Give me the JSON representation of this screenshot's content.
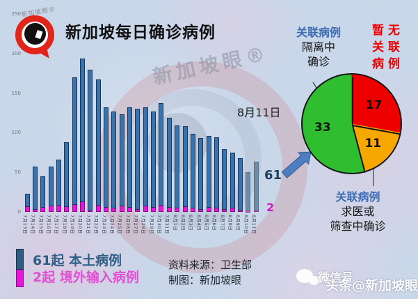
{
  "brand": {
    "logo_text": "新加坡眼®",
    "title": "新加坡每日确诊病例"
  },
  "chart_data": {
    "type": "bar",
    "stacked": true,
    "title": "新加坡每日确诊病例",
    "categories": [
      "7月13日",
      "7月14日",
      "7月15日",
      "7月16日",
      "7月17日",
      "7月18日",
      "7月19日",
      "7月20日",
      "7月21日",
      "7月22日",
      "7月23日",
      "7月24日",
      "7月25日",
      "7月26日",
      "7月27日",
      "7月28日",
      "7月29日",
      "7月30日",
      "7月31日",
      "8月1日",
      "8月2日",
      "8月3日",
      "8月4日",
      "8月5日",
      "8月6日",
      "8月7日",
      "8月8日",
      "8月9日",
      "8月10日",
      "8月11日"
    ],
    "series": [
      {
        "name": "本土病例",
        "color": "#3a73ac",
        "values": [
          17,
          54,
          40,
          50,
          58,
          82,
          161,
          182,
          178,
          159,
          127,
          123,
          116,
          127,
          127,
          125,
          122,
          129,
          114,
          105,
          102,
          95,
          90,
          91,
          90,
          76,
          71,
          66,
          49,
          61
        ]
      },
      {
        "name": "境外输入病例",
        "color": "#e816d8",
        "values": [
          6,
          3,
          5,
          7,
          8,
          6,
          9,
          12,
          2,
          8,
          5,
          4,
          7,
          5,
          3,
          7,
          5,
          8,
          5,
          4,
          6,
          4,
          3,
          5,
          4,
          3,
          4,
          2,
          1,
          2
        ]
      }
    ],
    "muted_last_n": 2,
    "ylim": [
      0,
      250
    ],
    "yticks": [
      0,
      50,
      100,
      150,
      200,
      250
    ],
    "grid": false,
    "legend_position": "bottom-left"
  },
  "annotations": {
    "date_label": "8月11日",
    "local_count": "61",
    "imported_count": "2"
  },
  "pie": {
    "type": "pie",
    "total": 61,
    "slices": [
      {
        "label": "暂无关联病例",
        "value": 17,
        "color": "#ee0000"
      },
      {
        "label": "关联病例 求医或筛查中确诊",
        "value": 11,
        "color": "#f6a800"
      },
      {
        "label": "关联病例 隔离中确诊",
        "value": 33,
        "color": "#2fbe2f"
      }
    ],
    "label_quarantine": {
      "head": "关联病例",
      "line2": "隔离中",
      "line3": "确诊"
    },
    "label_unlinked": {
      "line1": "暂无",
      "line2": "关联",
      "line3": "病例"
    },
    "label_screening": {
      "head": "关联病例",
      "line2": "求医或",
      "line3": "筛查中确诊"
    }
  },
  "legend": {
    "local": "61起 本土病例",
    "imported": "2起  境外输入病例"
  },
  "source": {
    "line1": "资料来源：卫生部",
    "line2": "制图：新加坡眼"
  },
  "watermarks": {
    "center_text": "新加坡眼®",
    "bottom_right_1": "微信号",
    "bottom_right_2": "头条@新加坡眼"
  }
}
